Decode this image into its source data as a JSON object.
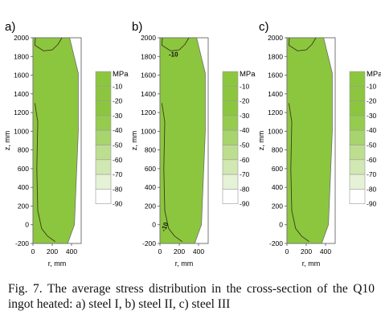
{
  "chart_data": [
    {
      "type": "contour",
      "panel_label": "a)",
      "ylabel": "z, mm",
      "xlabel": "r, mm",
      "x_ticks": [
        "0",
        "200",
        "400"
      ],
      "y_ticks": [
        "2000",
        "1800",
        "1600",
        "1400",
        "1200",
        "1000",
        "800",
        "600",
        "400",
        "200",
        "0",
        "-200"
      ],
      "xlim": [
        0,
        500
      ],
      "ylim": [
        -200,
        2000
      ],
      "contour_labels": [],
      "legend": {
        "title": "MPa",
        "levels": [
          "-10",
          "-20",
          "-30",
          "-40",
          "-50",
          "-60",
          "-70",
          "-80",
          "-90"
        ]
      }
    },
    {
      "type": "contour",
      "panel_label": "b)",
      "ylabel": "z, mm",
      "xlabel": "r, mm",
      "x_ticks": [
        "0",
        "200",
        "400"
      ],
      "y_ticks": [
        "2000",
        "1800",
        "1600",
        "1400",
        "1200",
        "1000",
        "800",
        "600",
        "400",
        "200",
        "0",
        "-200"
      ],
      "xlim": [
        0,
        500
      ],
      "ylim": [
        -200,
        2000
      ],
      "contour_labels": [
        "-10",
        "-10"
      ],
      "legend": {
        "title": "MPa",
        "levels": [
          "-10",
          "-20",
          "-30",
          "-40",
          "-50",
          "-60",
          "-70",
          "-80",
          "-90"
        ]
      }
    },
    {
      "type": "contour",
      "panel_label": "c)",
      "ylabel": "z, mm",
      "xlabel": "r, mm",
      "x_ticks": [
        "0",
        "200",
        "400"
      ],
      "y_ticks": [
        "2000",
        "1800",
        "1600",
        "1400",
        "1200",
        "1000",
        "800",
        "600",
        "400",
        "200",
        "0",
        "-200"
      ],
      "xlim": [
        0,
        500
      ],
      "ylim": [
        -200,
        2000
      ],
      "contour_labels": [],
      "legend": {
        "title": "MPa",
        "levels": [
          "-10",
          "-20",
          "-30",
          "-40",
          "-50",
          "-60",
          "-70",
          "-80",
          "-90"
        ]
      }
    }
  ],
  "colors": {
    "fill": "#8cc63f",
    "contour": "#3a3a1e",
    "legend": [
      "#8cc63f",
      "#8cc63f",
      "#8cc63f",
      "#95cb4e",
      "#a7d46c",
      "#bcde8e",
      "#d1e8b2",
      "#e6f2d6",
      "#ffffff"
    ]
  },
  "caption": "Fig. 7. The average stress distribution in the cross-section of the Q10 ingot heated: a) steel I, b) steel II, c) steel III"
}
